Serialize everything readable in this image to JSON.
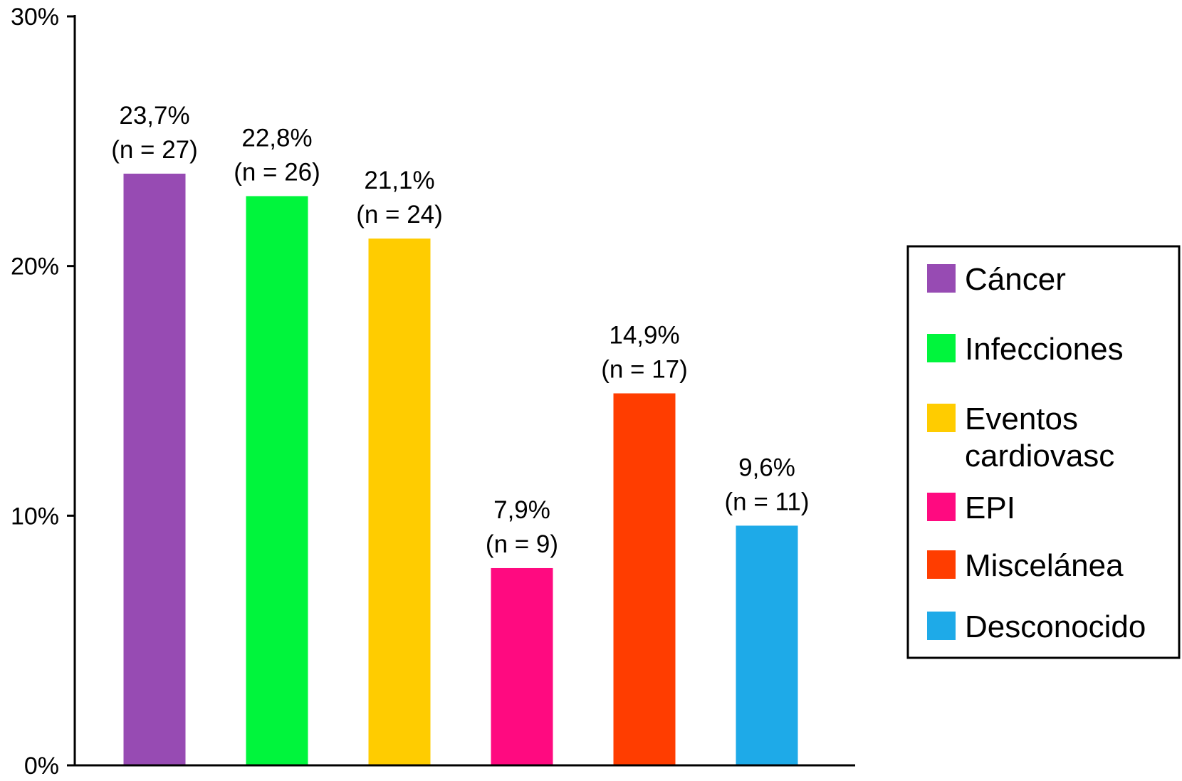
{
  "chart_data": {
    "type": "bar",
    "categories": [
      "Cáncer",
      "Infecciones",
      "Eventos cardiovasc",
      "EPI",
      "Miscelánea",
      "Desconocido"
    ],
    "series": [
      {
        "values": [
          23.7,
          22.8,
          21.1,
          7.9,
          14.9,
          9.6
        ],
        "counts": [
          27,
          26,
          24,
          9,
          17,
          11
        ],
        "colors": [
          "#974bb3",
          "#00f53c",
          "#ffcc00",
          "#ff0a80",
          "#ff3d00",
          "#1eaae8"
        ]
      }
    ],
    "data_labels": [
      [
        "23,7%",
        "(n = 27)"
      ],
      [
        "22,8%",
        "(n = 26)"
      ],
      [
        "21,1%",
        "(n = 24)"
      ],
      [
        "7,9%",
        "(n = 9)"
      ],
      [
        "14,9%",
        "(n = 17)"
      ],
      [
        "9,6%",
        "(n = 11)"
      ]
    ],
    "ylim": [
      0,
      30
    ],
    "yticks": [
      0,
      10,
      20,
      30
    ],
    "ytick_labels": [
      "0%",
      "10%",
      "20%",
      "30%"
    ],
    "title": "",
    "xlabel": "",
    "ylabel": "",
    "grid": false,
    "legend": {
      "placement": "right",
      "entries": [
        {
          "lines": [
            "Cáncer"
          ],
          "color": "#974bb3"
        },
        {
          "lines": [
            "Infecciones"
          ],
          "color": "#00f53c"
        },
        {
          "lines": [
            "Eventos",
            "cardiovasc"
          ],
          "color": "#ffcc00"
        },
        {
          "lines": [
            "EPI"
          ],
          "color": "#ff0a80"
        },
        {
          "lines": [
            "Miscelánea"
          ],
          "color": "#ff3d00"
        },
        {
          "lines": [
            "Desconocido"
          ],
          "color": "#1eaae8"
        }
      ]
    }
  }
}
